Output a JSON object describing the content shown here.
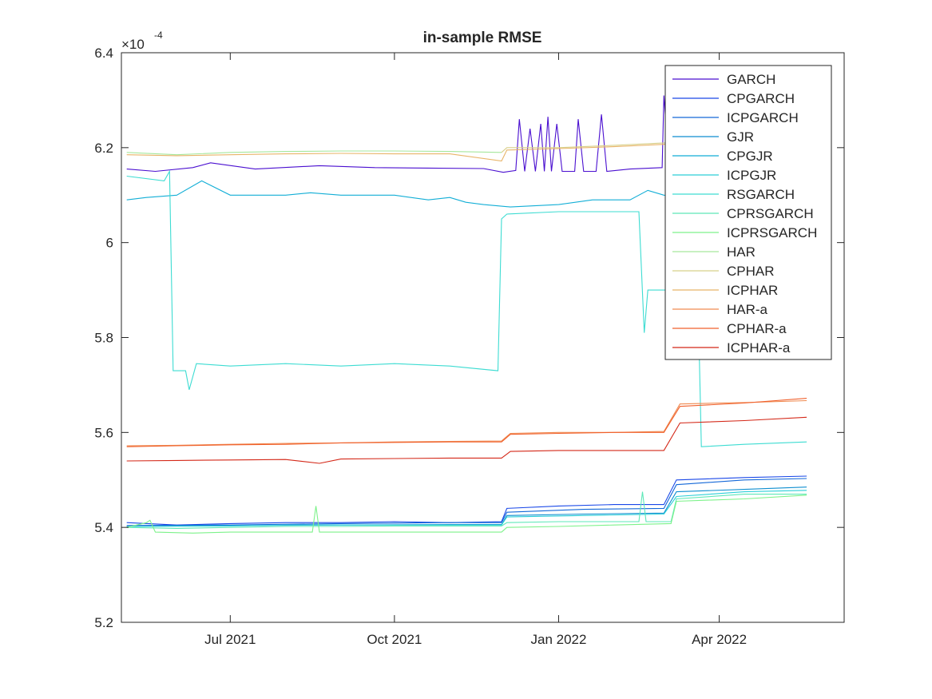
{
  "chart_data": {
    "type": "line",
    "title": "in-sample RMSE",
    "exponent_label": "×10",
    "exponent_power": "-4",
    "xlabel": "",
    "ylabel": "",
    "ylim": [
      5.2,
      6.4
    ],
    "xlim": [
      "2021-05-01",
      "2022-06-10"
    ],
    "yticks": [
      "5.2",
      "5.4",
      "5.6",
      "5.8",
      "6",
      "6.2",
      "6.4"
    ],
    "xticks": [
      {
        "date": "2021-07-01",
        "label": "Jul 2021"
      },
      {
        "date": "2021-10-01",
        "label": "Oct 2021"
      },
      {
        "date": "2022-01-01",
        "label": "Jan 2022"
      },
      {
        "date": "2022-04-01",
        "label": "Apr 2022"
      }
    ],
    "grid": false,
    "legend_position": "top-right",
    "series": [
      {
        "name": "GARCH",
        "color": "#4a0fd0",
        "points": [
          [
            "2021-05-04",
            6.155
          ],
          [
            "2021-05-20",
            6.15
          ],
          [
            "2021-06-10",
            6.158
          ],
          [
            "2021-06-20",
            6.168
          ],
          [
            "2021-07-15",
            6.155
          ],
          [
            "2021-08-20",
            6.162
          ],
          [
            "2021-09-20",
            6.158
          ],
          [
            "2021-10-20",
            6.157
          ],
          [
            "2021-11-20",
            6.156
          ],
          [
            "2021-12-01",
            6.148
          ],
          [
            "2021-12-08",
            6.152
          ],
          [
            "2021-12-10",
            6.26
          ],
          [
            "2021-12-13",
            6.15
          ],
          [
            "2021-12-16",
            6.24
          ],
          [
            "2021-12-19",
            6.15
          ],
          [
            "2021-12-22",
            6.25
          ],
          [
            "2021-12-24",
            6.15
          ],
          [
            "2021-12-26",
            6.265
          ],
          [
            "2021-12-28",
            6.15
          ],
          [
            "2021-12-31",
            6.25
          ],
          [
            "2022-01-03",
            6.15
          ],
          [
            "2022-01-10",
            6.15
          ],
          [
            "2022-01-12",
            6.26
          ],
          [
            "2022-01-15",
            6.15
          ],
          [
            "2022-01-22",
            6.15
          ],
          [
            "2022-01-25",
            6.27
          ],
          [
            "2022-01-28",
            6.15
          ],
          [
            "2022-02-10",
            6.155
          ],
          [
            "2022-02-28",
            6.158
          ],
          [
            "2022-03-01",
            6.31
          ],
          [
            "2022-03-04",
            6.155
          ],
          [
            "2022-03-15",
            6.152
          ],
          [
            "2022-03-25",
            6.155
          ]
        ]
      },
      {
        "name": "CPGARCH",
        "color": "#1a48e8",
        "points": [
          [
            "2021-05-04",
            5.41
          ],
          [
            "2021-06-01",
            5.405
          ],
          [
            "2021-07-01",
            5.408
          ],
          [
            "2021-08-01",
            5.41
          ],
          [
            "2021-09-01",
            5.41
          ],
          [
            "2021-10-01",
            5.412
          ],
          [
            "2021-11-01",
            5.41
          ],
          [
            "2021-11-30",
            5.412
          ],
          [
            "2021-12-03",
            5.44
          ],
          [
            "2022-01-01",
            5.445
          ],
          [
            "2022-02-01",
            5.448
          ],
          [
            "2022-03-01",
            5.448
          ],
          [
            "2022-03-08",
            5.5
          ],
          [
            "2022-04-15",
            5.505
          ],
          [
            "2022-05-20",
            5.508
          ]
        ]
      },
      {
        "name": "ICPGARCH",
        "color": "#1468d8",
        "points": [
          [
            "2021-05-04",
            5.404
          ],
          [
            "2021-07-01",
            5.405
          ],
          [
            "2021-09-01",
            5.408
          ],
          [
            "2021-11-01",
            5.41
          ],
          [
            "2021-11-30",
            5.41
          ],
          [
            "2021-12-03",
            5.432
          ],
          [
            "2022-01-15",
            5.438
          ],
          [
            "2022-03-01",
            5.44
          ],
          [
            "2022-03-08",
            5.49
          ],
          [
            "2022-04-15",
            5.5
          ],
          [
            "2022-05-20",
            5.503
          ]
        ]
      },
      {
        "name": "GJR",
        "color": "#0e8ed0",
        "points": [
          [
            "2021-05-04",
            5.402
          ],
          [
            "2021-07-01",
            5.404
          ],
          [
            "2021-09-01",
            5.405
          ],
          [
            "2021-11-01",
            5.406
          ],
          [
            "2021-11-30",
            5.406
          ],
          [
            "2021-12-03",
            5.425
          ],
          [
            "2022-01-15",
            5.428
          ],
          [
            "2022-03-01",
            5.43
          ],
          [
            "2022-03-08",
            5.475
          ],
          [
            "2022-04-15",
            5.48
          ],
          [
            "2022-05-20",
            5.485
          ]
        ]
      },
      {
        "name": "CPGJR",
        "color": "#12aed6",
        "points": [
          [
            "2021-05-04",
            6.09
          ],
          [
            "2021-05-15",
            6.095
          ],
          [
            "2021-06-01",
            6.1
          ],
          [
            "2021-06-15",
            6.13
          ],
          [
            "2021-07-01",
            6.1
          ],
          [
            "2021-08-01",
            6.1
          ],
          [
            "2021-08-15",
            6.105
          ],
          [
            "2021-09-01",
            6.1
          ],
          [
            "2021-10-01",
            6.1
          ],
          [
            "2021-10-20",
            6.09
          ],
          [
            "2021-11-01",
            6.095
          ],
          [
            "2021-11-10",
            6.085
          ],
          [
            "2021-11-20",
            6.08
          ],
          [
            "2021-12-05",
            6.075
          ],
          [
            "2022-01-01",
            6.08
          ],
          [
            "2022-01-20",
            6.09
          ],
          [
            "2022-02-10",
            6.09
          ],
          [
            "2022-02-20",
            6.11
          ],
          [
            "2022-03-01",
            6.1
          ],
          [
            "2022-03-20",
            6.095
          ]
        ]
      },
      {
        "name": "ICPGJR",
        "color": "#2ccfd8",
        "points": [
          [
            "2021-05-04",
            5.402
          ],
          [
            "2021-07-01",
            5.403
          ],
          [
            "2021-08-01",
            5.405
          ],
          [
            "2021-09-01",
            5.405
          ],
          [
            "2021-11-01",
            5.405
          ],
          [
            "2021-11-30",
            5.405
          ],
          [
            "2021-12-03",
            5.422
          ],
          [
            "2022-01-15",
            5.425
          ],
          [
            "2022-03-01",
            5.428
          ],
          [
            "2022-03-08",
            5.465
          ],
          [
            "2022-04-15",
            5.475
          ],
          [
            "2022-05-20",
            5.478
          ]
        ]
      },
      {
        "name": "RSGARCH",
        "color": "#3ddcd2",
        "points": [
          [
            "2021-05-04",
            6.14
          ],
          [
            "2021-05-25",
            6.13
          ],
          [
            "2021-05-28",
            6.15
          ],
          [
            "2021-05-30",
            5.73
          ],
          [
            "2021-06-06",
            5.73
          ],
          [
            "2021-06-08",
            5.69
          ],
          [
            "2021-06-12",
            5.745
          ],
          [
            "2021-07-01",
            5.74
          ],
          [
            "2021-08-01",
            5.745
          ],
          [
            "2021-09-01",
            5.74
          ],
          [
            "2021-10-01",
            5.745
          ],
          [
            "2021-11-01",
            5.74
          ],
          [
            "2021-11-28",
            5.73
          ],
          [
            "2021-11-30",
            6.05
          ],
          [
            "2021-12-03",
            6.06
          ],
          [
            "2022-01-01",
            6.065
          ],
          [
            "2022-02-01",
            6.065
          ],
          [
            "2022-02-15",
            6.065
          ],
          [
            "2022-02-18",
            5.81
          ],
          [
            "2022-02-20",
            5.9
          ],
          [
            "2022-03-10",
            5.9
          ],
          [
            "2022-03-20",
            5.9
          ],
          [
            "2022-03-22",
            5.57
          ],
          [
            "2022-04-15",
            5.575
          ],
          [
            "2022-05-20",
            5.58
          ]
        ]
      },
      {
        "name": "CPRSGARCH",
        "color": "#5de8b8",
        "points": [
          [
            "2021-05-04",
            5.4
          ],
          [
            "2021-06-01",
            5.398
          ],
          [
            "2021-07-01",
            5.4
          ],
          [
            "2021-08-01",
            5.402
          ],
          [
            "2021-09-01",
            5.402
          ],
          [
            "2021-10-01",
            5.403
          ],
          [
            "2021-11-01",
            5.403
          ],
          [
            "2021-11-30",
            5.403
          ],
          [
            "2021-12-03",
            5.41
          ],
          [
            "2022-01-01",
            5.412
          ],
          [
            "2022-02-01",
            5.412
          ],
          [
            "2022-02-15",
            5.412
          ],
          [
            "2022-02-17",
            5.475
          ],
          [
            "2022-02-19",
            5.412
          ],
          [
            "2022-03-05",
            5.412
          ],
          [
            "2022-03-08",
            5.46
          ],
          [
            "2022-04-15",
            5.47
          ],
          [
            "2022-05-20",
            5.47
          ]
        ]
      },
      {
        "name": "ICPRSGARCH",
        "color": "#7df28a",
        "points": [
          [
            "2021-05-04",
            5.4
          ],
          [
            "2021-05-15",
            5.41
          ],
          [
            "2021-05-17",
            5.415
          ],
          [
            "2021-05-20",
            5.39
          ],
          [
            "2021-06-10",
            5.388
          ],
          [
            "2021-07-01",
            5.39
          ],
          [
            "2021-08-01",
            5.39
          ],
          [
            "2021-08-16",
            5.39
          ],
          [
            "2021-08-18",
            5.445
          ],
          [
            "2021-08-20",
            5.39
          ],
          [
            "2021-10-01",
            5.39
          ],
          [
            "2021-11-01",
            5.39
          ],
          [
            "2021-11-30",
            5.39
          ],
          [
            "2021-12-03",
            5.4
          ],
          [
            "2022-01-01",
            5.402
          ],
          [
            "2022-02-01",
            5.405
          ],
          [
            "2022-03-05",
            5.408
          ],
          [
            "2022-03-08",
            5.455
          ],
          [
            "2022-04-15",
            5.46
          ],
          [
            "2022-05-20",
            5.468
          ]
        ]
      },
      {
        "name": "HAR",
        "color": "#a6e79c",
        "points": [
          [
            "2021-05-04",
            6.19
          ],
          [
            "2021-06-01",
            6.185
          ],
          [
            "2021-07-01",
            6.19
          ],
          [
            "2021-08-01",
            6.192
          ],
          [
            "2021-09-01",
            6.193
          ],
          [
            "2021-10-01",
            6.193
          ],
          [
            "2021-11-01",
            6.192
          ],
          [
            "2021-11-30",
            6.19
          ]
        ]
      },
      {
        "name": "CPHAR",
        "color": "#d8d08a",
        "points": [
          [
            "2021-11-30",
            6.19
          ],
          [
            "2021-12-03",
            6.2
          ],
          [
            "2022-01-01",
            6.2
          ],
          [
            "2022-02-01",
            6.205
          ],
          [
            "2022-03-01",
            6.21
          ],
          [
            "2022-03-20",
            6.21
          ]
        ]
      },
      {
        "name": "ICPHAR",
        "color": "#e8b468",
        "points": [
          [
            "2021-05-04",
            6.185
          ],
          [
            "2021-06-01",
            6.183
          ],
          [
            "2021-07-01",
            6.185
          ],
          [
            "2021-08-01",
            6.187
          ],
          [
            "2021-09-01",
            6.188
          ],
          [
            "2021-10-01",
            6.187
          ],
          [
            "2021-11-01",
            6.187
          ],
          [
            "2021-11-30",
            6.172
          ],
          [
            "2021-12-03",
            6.195
          ],
          [
            "2022-01-01",
            6.198
          ],
          [
            "2022-02-01",
            6.202
          ],
          [
            "2022-03-01",
            6.207
          ],
          [
            "2022-03-20",
            6.207
          ]
        ]
      },
      {
        "name": "HAR-a",
        "color": "#f08a50",
        "points": [
          [
            "2021-05-04",
            5.572
          ],
          [
            "2021-06-01",
            5.573
          ],
          [
            "2021-07-01",
            5.575
          ],
          [
            "2021-08-01",
            5.577
          ],
          [
            "2021-09-01",
            5.578
          ],
          [
            "2021-10-01",
            5.58
          ],
          [
            "2021-11-01",
            5.581
          ],
          [
            "2021-11-30",
            5.582
          ],
          [
            "2021-12-05",
            5.598
          ],
          [
            "2022-01-01",
            5.6
          ],
          [
            "2022-02-01",
            5.6
          ],
          [
            "2022-03-01",
            5.602
          ],
          [
            "2022-03-10",
            5.66
          ],
          [
            "2022-04-15",
            5.663
          ],
          [
            "2022-05-20",
            5.667
          ]
        ]
      },
      {
        "name": "CPHAR-a",
        "color": "#f0602c",
        "points": [
          [
            "2021-05-04",
            5.57
          ],
          [
            "2021-06-01",
            5.572
          ],
          [
            "2021-07-01",
            5.574
          ],
          [
            "2021-08-01",
            5.575
          ],
          [
            "2021-09-01",
            5.578
          ],
          [
            "2021-10-01",
            5.579
          ],
          [
            "2021-11-01",
            5.58
          ],
          [
            "2021-11-30",
            5.58
          ],
          [
            "2021-12-05",
            5.596
          ],
          [
            "2022-01-01",
            5.598
          ],
          [
            "2022-02-01",
            5.6
          ],
          [
            "2022-03-01",
            5.6
          ],
          [
            "2022-03-10",
            5.655
          ],
          [
            "2022-04-15",
            5.662
          ],
          [
            "2022-05-20",
            5.672
          ]
        ]
      },
      {
        "name": "ICPHAR-a",
        "color": "#d42818",
        "points": [
          [
            "2021-05-04",
            5.54
          ],
          [
            "2021-06-01",
            5.541
          ],
          [
            "2021-07-01",
            5.542
          ],
          [
            "2021-08-01",
            5.543
          ],
          [
            "2021-08-20",
            5.535
          ],
          [
            "2021-09-01",
            5.544
          ],
          [
            "2021-10-01",
            5.545
          ],
          [
            "2021-11-01",
            5.546
          ],
          [
            "2021-11-30",
            5.546
          ],
          [
            "2021-12-05",
            5.56
          ],
          [
            "2022-01-01",
            5.562
          ],
          [
            "2022-02-01",
            5.562
          ],
          [
            "2022-03-01",
            5.562
          ],
          [
            "2022-03-10",
            5.62
          ],
          [
            "2022-04-15",
            5.625
          ],
          [
            "2022-05-20",
            5.632
          ]
        ]
      }
    ]
  }
}
